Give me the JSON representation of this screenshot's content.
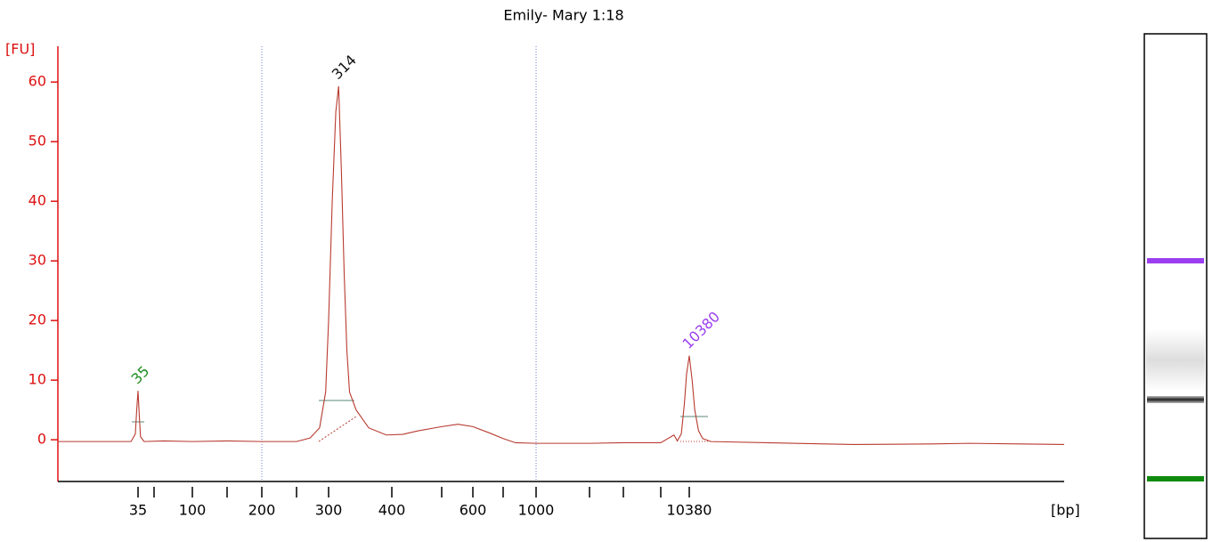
{
  "chart_data": {
    "type": "line",
    "title": "Emily- Mary 1:18",
    "y_label": "[FU]",
    "x_label": "[bp]",
    "log_scale_x": true,
    "axis_color": "#dd1111",
    "xlim": [
      6,
      1850000
    ],
    "xticks": [
      35,
      {
        "value": 50,
        "label": null
      },
      100,
      {
        "value": 150,
        "label": null
      },
      200,
      {
        "value": 250,
        "label": null
      },
      300,
      400,
      {
        "value": 500,
        "label": null
      },
      600,
      {
        "value": 700,
        "label": null
      },
      1000,
      {
        "value": 2000,
        "label": null
      },
      {
        "value": 3000,
        "label": null
      },
      {
        "value": 7000,
        "label": null
      },
      10380
    ],
    "ylim": [
      -7,
      66
    ],
    "yticks": [
      0,
      10,
      20,
      30,
      40,
      50,
      60
    ],
    "markers": [
      200,
      1000
    ],
    "marker_color": "#6a78c8",
    "x": [
      6,
      7,
      20,
      30,
      33,
      34,
      35,
      36,
      37,
      40,
      60,
      100,
      150,
      200,
      250,
      270,
      285,
      295,
      300,
      305,
      310,
      314,
      318,
      322,
      326,
      330,
      340,
      360,
      390,
      420,
      450,
      500,
      550,
      600,
      650,
      700,
      800,
      1000,
      1500,
      2000,
      3000,
      5000,
      7000,
      8400,
      8800,
      9300,
      9700,
      10000,
      10380,
      10800,
      11200,
      11800,
      12500,
      14000,
      30000,
      100000,
      300000,
      500000,
      1000000,
      1850000
    ],
    "series": [
      {
        "name": "Emily- Mary 1:18",
        "color": "#b83a30",
        "values": [
          -0.3,
          -0.3,
          -0.3,
          -0.3,
          1,
          5,
          8.2,
          4,
          0.5,
          -0.3,
          -0.2,
          -0.3,
          -0.2,
          -0.3,
          -0.3,
          0.3,
          2,
          8,
          20,
          40,
          55,
          59.3,
          45,
          28,
          15,
          8,
          5,
          2,
          0.8,
          0.9,
          1.5,
          2.2,
          2.6,
          2.2,
          1.2,
          0.2,
          -0.5,
          -0.6,
          -0.6,
          -0.6,
          -0.5,
          -0.5,
          -0.5,
          0.8,
          -0.2,
          1,
          6,
          11,
          14.1,
          10,
          5,
          1.5,
          0.2,
          -0.3,
          -0.5,
          -0.8,
          -0.7,
          -0.6,
          -0.7,
          -0.8
        ]
      }
    ],
    "annotations": [
      {
        "text": "35",
        "x": 35,
        "y": 8.2,
        "color": "#1e8c1e"
      },
      {
        "text": "314",
        "x": 314,
        "y": 59.3,
        "color": "#111111"
      },
      {
        "text": "10380",
        "x": 10380,
        "y": 14.1,
        "color": "#9b3ef0"
      }
    ]
  }
}
